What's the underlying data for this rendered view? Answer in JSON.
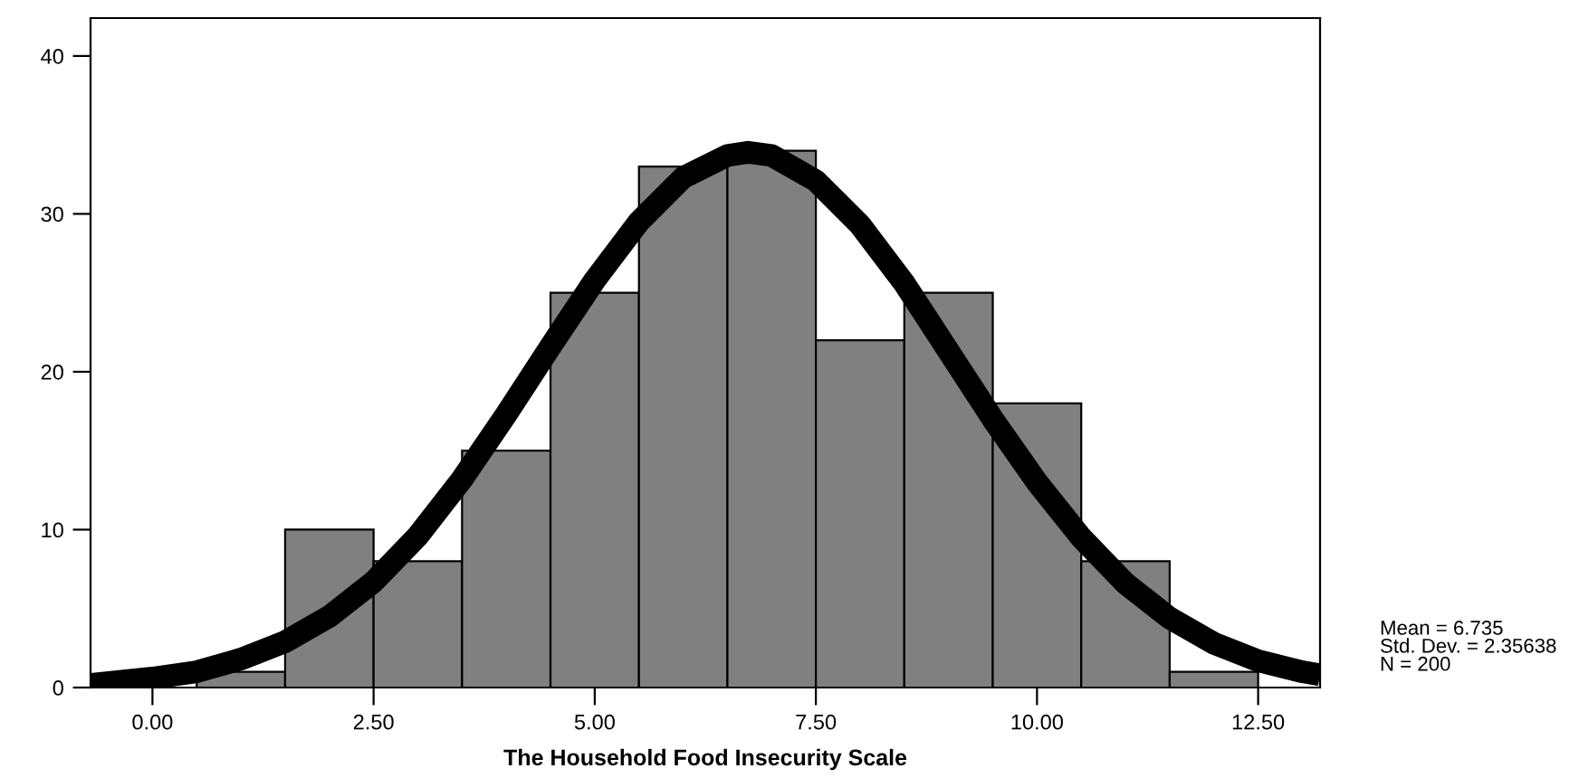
{
  "chart_data": {
    "type": "histogram",
    "xlabel": "The Household Food Insecurity Scale",
    "xlim": [
      -0.7,
      13.2
    ],
    "ylim": [
      0,
      42.4
    ],
    "xticks": [
      {
        "value": 0,
        "label": "0.00"
      },
      {
        "value": 2.5,
        "label": "2.50"
      },
      {
        "value": 5,
        "label": "5.00"
      },
      {
        "value": 7.5,
        "label": "7.50"
      },
      {
        "value": 10,
        "label": "10.00"
      },
      {
        "value": 12.5,
        "label": "12.50"
      }
    ],
    "yticks": [
      0,
      10,
      20,
      30,
      40
    ],
    "grid": false,
    "series": [
      {
        "color": "#808080",
        "bins": [
          0.5,
          1.5,
          2.5,
          3.5,
          4.5,
          5.5,
          6.5,
          7.5,
          8.5,
          9.5,
          10.5,
          11.5,
          12.5
        ],
        "values": [
          1,
          10,
          8,
          15,
          25,
          33,
          34,
          22,
          25,
          18,
          8,
          1
        ]
      },
      {
        "type": "line",
        "color": "#000000",
        "x": [
          -0.7,
          0,
          0.5,
          1,
          1.5,
          2,
          2.5,
          3,
          3.5,
          4,
          4.5,
          5,
          5.5,
          6,
          6.5,
          6.735,
          7,
          7.5,
          8,
          8.5,
          9,
          9.5,
          10,
          10.5,
          11,
          11.5,
          12,
          12.5,
          13,
          13.2
        ],
        "values": [
          0.2,
          0.6,
          1.0,
          1.8,
          2.9,
          4.5,
          6.7,
          9.6,
          13.2,
          17.3,
          21.6,
          25.8,
          29.5,
          32.3,
          33.7,
          33.9,
          33.7,
          32.1,
          29.3,
          25.6,
          21.3,
          17.0,
          13.0,
          9.5,
          6.6,
          4.4,
          2.8,
          1.7,
          1.0,
          0.8
        ]
      }
    ],
    "annotations": [
      "Mean = 6.735\nStd. Dev. = 2.35638\nN = 200"
    ]
  }
}
